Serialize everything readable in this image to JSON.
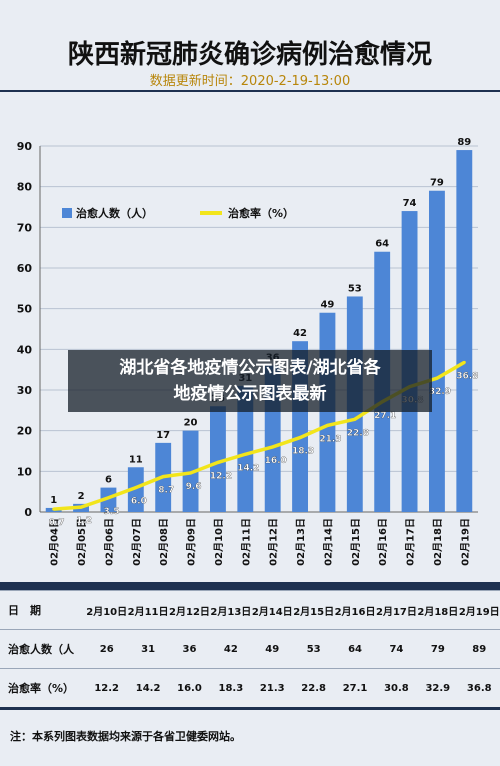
{
  "title": "陕西新冠肺炎确诊病例治愈情况",
  "subtitle": "数据更新时间：2020-2-19-13:00",
  "overlay_line1": "湖北省各地疫情公示图表/湖北省各",
  "overlay_line2": "地疫情公示图表最新",
  "note": "注：本系列图表数据均来源于各省卫健委网站。",
  "colors": {
    "bar": "#4d86d6",
    "line": "#f2e51b",
    "background": "#e9edf3"
  },
  "chart_data": {
    "type": "bar",
    "categories": [
      "02月04日",
      "02月05日",
      "02月06日",
      "02月07日",
      "02月08日",
      "02月09日",
      "02月10日",
      "02月11日",
      "02月12日",
      "02月13日",
      "02月14日",
      "02月15日",
      "02月16日",
      "02月17日",
      "02月18日",
      "02月19日"
    ],
    "series": [
      {
        "name": "治愈人数（人）",
        "type": "bar",
        "values": [
          1,
          2,
          6,
          11,
          17,
          20,
          26,
          31,
          36,
          42,
          49,
          53,
          64,
          74,
          79,
          89
        ]
      },
      {
        "name": "治愈率（%）",
        "type": "line",
        "values": [
          0.7,
          1.2,
          3.5,
          6.0,
          8.7,
          9.6,
          12.2,
          14.2,
          16.0,
          18.3,
          21.3,
          22.8,
          27.1,
          30.8,
          32.9,
          36.8
        ]
      }
    ],
    "ylim": [
      0,
      90
    ],
    "yticks": [
      0,
      10,
      20,
      30,
      40,
      50,
      60,
      70,
      80,
      90
    ],
    "grid": true,
    "legend": "top-left"
  },
  "table": {
    "row_labels": [
      "日　期",
      "治愈人数（人",
      "治愈率（%）"
    ],
    "dates": [
      "2月10日",
      "2月11日",
      "2月12日",
      "2月13日",
      "2月14日",
      "2月15日",
      "2月16日",
      "2月17日",
      "2月18日",
      "2月19日"
    ],
    "cured": [
      "26",
      "31",
      "36",
      "42",
      "49",
      "53",
      "64",
      "74",
      "79",
      "89"
    ],
    "rate": [
      "12.2",
      "14.2",
      "16.0",
      "18.3",
      "21.3",
      "22.8",
      "27.1",
      "30.8",
      "32.9",
      "36.8"
    ]
  }
}
